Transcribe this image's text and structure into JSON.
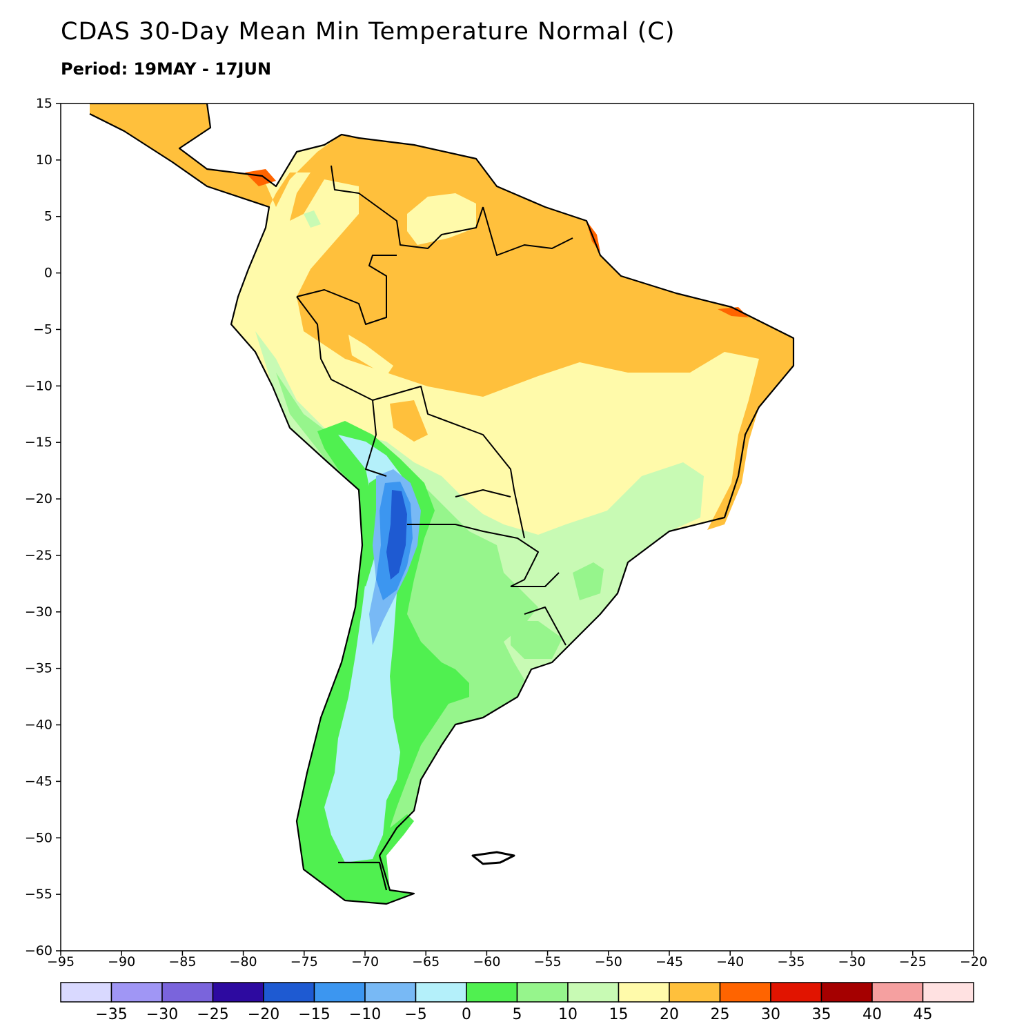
{
  "title": "CDAS 30-Day Mean Min Temperature Normal (C)",
  "subtitle": "Period: 19MAY - 17JUN",
  "map": {
    "region": "South America",
    "lon_range": [
      -95,
      -20
    ],
    "lat_range": [
      -60,
      15
    ],
    "x_ticks": [
      -95,
      -90,
      -85,
      -80,
      -75,
      -70,
      -65,
      -60,
      -55,
      -50,
      -45,
      -40,
      -35,
      -30,
      -25,
      -20
    ],
    "y_ticks": [
      15,
      10,
      5,
      0,
      -5,
      -10,
      -15,
      -20,
      -25,
      -30,
      -35,
      -40,
      -45,
      -50,
      -55,
      -60
    ],
    "x_tick_labels": [
      "−95",
      "−90",
      "−85",
      "−80",
      "−75",
      "−70",
      "−65",
      "−60",
      "−55",
      "−50",
      "−45",
      "−40",
      "−35",
      "−30",
      "−25",
      "−20"
    ],
    "y_tick_labels": [
      "15",
      "10",
      "5",
      "0",
      "−5",
      "−10",
      "−15",
      "−20",
      "−25",
      "−30",
      "−35",
      "−40",
      "−45",
      "−50",
      "−55",
      "−60"
    ]
  },
  "colorbar": {
    "colors": [
      "#d9d9ff",
      "#a096f5",
      "#7a64dc",
      "#2d0aa0",
      "#1e5ad2",
      "#3c96f0",
      "#78b9f5",
      "#b4f0fa",
      "#50f050",
      "#96f58c",
      "#c8fab4",
      "#fffaaa",
      "#ffc03c",
      "#ff6400",
      "#e11400",
      "#a50000",
      "#f5a0a0",
      "#ffe1e1"
    ],
    "labels": [
      "−35",
      "−30",
      "−25",
      "−20",
      "−15",
      "−10",
      "−5",
      "0",
      "5",
      "10",
      "15",
      "20",
      "25",
      "30",
      "35",
      "40",
      "45"
    ]
  }
}
